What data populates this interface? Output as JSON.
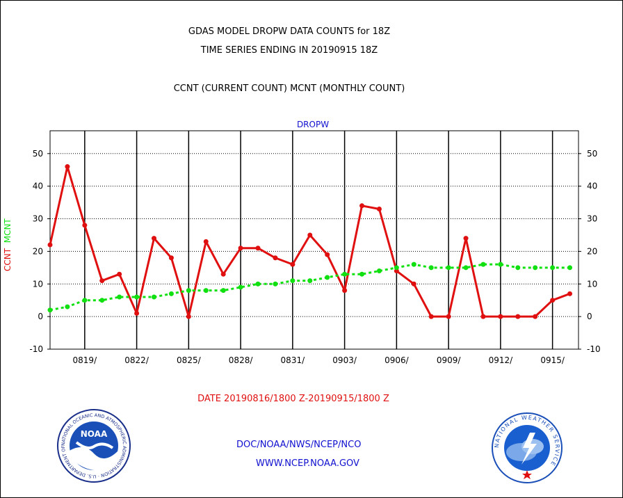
{
  "header": {
    "title_line1": "GDAS MODEL DROPW DATA COUNTS for 18Z",
    "title_line2": "TIME SERIES ENDING IN 20190915 18Z",
    "subtitle": "CCNT (CURRENT COUNT) MCNT (MONTHLY COUNT)"
  },
  "footer": {
    "date_range": "DATE 20190816/1800 Z-20190915/1800 Z",
    "org": "DOC/NOAA/NWS/NCEP/NCO",
    "url": "WWW.NCEP.NOAA.GOV"
  },
  "logos": {
    "noaa_text": "NOAA",
    "noaa_ring_text": "NATIONAL OCEANIC AND ATMOSPHERIC ADMINISTRATION · U.S. DEPARTMENT OF COMMERCE ·",
    "nws_ring_text": "NATIONAL WEATHER SERVICE"
  },
  "chart_data": {
    "type": "line",
    "title": "DROPW",
    "ylabel_ccnt": "CCNT",
    "ylabel_mcnt": "MCNT",
    "ylim": [
      -10,
      57
    ],
    "yticks": [
      -10,
      0,
      10,
      20,
      30,
      40,
      50
    ],
    "xlim": [
      0,
      30.5
    ],
    "xticks": [
      {
        "x": 2,
        "label": "0819/"
      },
      {
        "x": 5,
        "label": "0822/"
      },
      {
        "x": 8,
        "label": "0825/"
      },
      {
        "x": 11,
        "label": "0828/"
      },
      {
        "x": 14,
        "label": "0831/"
      },
      {
        "x": 17,
        "label": "0903/"
      },
      {
        "x": 20,
        "label": "0906/"
      },
      {
        "x": 23,
        "label": "0909/"
      },
      {
        "x": 26,
        "label": "0912/"
      },
      {
        "x": 29,
        "label": "0915/"
      }
    ],
    "grid": true,
    "series": [
      {
        "name": "CCNT",
        "color": "#e01010",
        "x": [
          0,
          1,
          2,
          3,
          4,
          5,
          6,
          7,
          8,
          9,
          10,
          11,
          12,
          13,
          14,
          15,
          16,
          17,
          18,
          19,
          20,
          21,
          22,
          23,
          24,
          25,
          26,
          27,
          28,
          29,
          30
        ],
        "values": [
          22,
          46,
          28,
          11,
          13,
          1,
          24,
          18,
          0,
          23,
          13,
          21,
          21,
          18,
          16,
          25,
          19,
          8,
          34,
          33,
          14,
          10,
          0,
          0,
          24,
          0,
          0,
          0,
          0,
          5,
          7
        ]
      },
      {
        "name": "MCNT",
        "color": "#10e010",
        "x": [
          0,
          1,
          2,
          3,
          4,
          5,
          6,
          7,
          8,
          9,
          10,
          11,
          12,
          13,
          14,
          15,
          16,
          17,
          18,
          19,
          20,
          21,
          22,
          23,
          24,
          25,
          26,
          27,
          28,
          29,
          30
        ],
        "values": [
          2,
          3,
          5,
          5,
          6,
          6,
          6,
          7,
          8,
          8,
          8,
          9,
          10,
          10,
          11,
          11,
          12,
          13,
          13,
          14,
          15,
          16,
          15,
          15,
          15,
          16,
          16,
          15,
          15,
          15,
          15
        ]
      }
    ]
  }
}
